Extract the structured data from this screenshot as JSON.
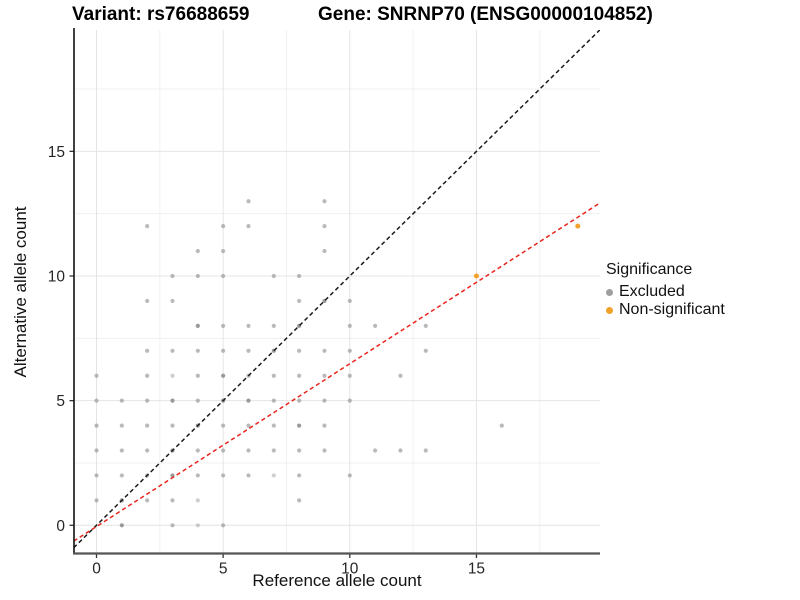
{
  "titles": {
    "variant": "Variant: rs76688659",
    "gene": "Gene: SNRNP70 (ENSG00000104852)"
  },
  "legend": {
    "title": "Significance",
    "items": [
      {
        "label": "Excluded",
        "color": "#9E9E9E"
      },
      {
        "label": "Non-significant",
        "color": "#F2A12B"
      }
    ]
  },
  "colors": {
    "background": "#FFFFFF",
    "grid_major": "#E4E4E4",
    "grid_minor": "#F0F0F0",
    "axis_left": "#111111",
    "axis_bottom": "#555555",
    "tick_text": "#262626",
    "identity_line": "#1A1A1A",
    "fit_line": "#E8251E"
  },
  "chart_data": {
    "type": "scatter",
    "title": "Variant: rs76688659  |  Gene: SNRNP70 (ENSG00000104852)",
    "xlabel": "Reference allele count",
    "ylabel": "Alternative allele count",
    "x_ticks": [
      0,
      5,
      10,
      15
    ],
    "y_ticks": [
      0,
      5,
      10,
      15
    ],
    "xlim": [
      -0.9,
      19.9
    ],
    "ylim": [
      -1.12,
      19.9
    ],
    "grid": {
      "major": [
        0,
        5,
        10,
        15
      ],
      "minor": [
        2.5,
        7.5,
        12.5,
        17.5
      ]
    },
    "legend_position": "right",
    "series": [
      {
        "name": "Excluded",
        "color": "#8C8C8C",
        "radius": 2.1,
        "points": [
          [
            1,
            0,
            "d"
          ],
          [
            3,
            0
          ],
          [
            4,
            0,
            "l"
          ],
          [
            5,
            0
          ],
          [
            0,
            1
          ],
          [
            1,
            1,
            "d"
          ],
          [
            2,
            1
          ],
          [
            3,
            1
          ],
          [
            4,
            1,
            "l"
          ],
          [
            8,
            1
          ],
          [
            0,
            2
          ],
          [
            1,
            2
          ],
          [
            2,
            2
          ],
          [
            3,
            2,
            "d"
          ],
          [
            4,
            2
          ],
          [
            5,
            2
          ],
          [
            6,
            2
          ],
          [
            7,
            2,
            "l"
          ],
          [
            8,
            2
          ],
          [
            10,
            2
          ],
          [
            0,
            3
          ],
          [
            1,
            3
          ],
          [
            2,
            3
          ],
          [
            3,
            3,
            "d"
          ],
          [
            4,
            3
          ],
          [
            5,
            3
          ],
          [
            6,
            3
          ],
          [
            7,
            3
          ],
          [
            8,
            3
          ],
          [
            9,
            3
          ],
          [
            11,
            3
          ],
          [
            12,
            3
          ],
          [
            13,
            3
          ],
          [
            0,
            4
          ],
          [
            1,
            4
          ],
          [
            2,
            4
          ],
          [
            3,
            4
          ],
          [
            4,
            4,
            "d"
          ],
          [
            5,
            4
          ],
          [
            6,
            4
          ],
          [
            7,
            4
          ],
          [
            8,
            4,
            "d"
          ],
          [
            9,
            4
          ],
          [
            16,
            4
          ],
          [
            0,
            5
          ],
          [
            1,
            5
          ],
          [
            2,
            5
          ],
          [
            3,
            5,
            "d"
          ],
          [
            4,
            5
          ],
          [
            5,
            5,
            "d"
          ],
          [
            6,
            5,
            "d"
          ],
          [
            7,
            5
          ],
          [
            8,
            5
          ],
          [
            9,
            5
          ],
          [
            10,
            5
          ],
          [
            0,
            6
          ],
          [
            2,
            6
          ],
          [
            3,
            6,
            "l"
          ],
          [
            4,
            6
          ],
          [
            5,
            6,
            "d"
          ],
          [
            6,
            6
          ],
          [
            7,
            6
          ],
          [
            8,
            6
          ],
          [
            9,
            6
          ],
          [
            10,
            6
          ],
          [
            12,
            6
          ],
          [
            2,
            7
          ],
          [
            3,
            7
          ],
          [
            4,
            7
          ],
          [
            5,
            7
          ],
          [
            6,
            7
          ],
          [
            7,
            7,
            "d"
          ],
          [
            8,
            7
          ],
          [
            9,
            7
          ],
          [
            10,
            7
          ],
          [
            13,
            7
          ],
          [
            4,
            8,
            "d"
          ],
          [
            5,
            8
          ],
          [
            6,
            8
          ],
          [
            7,
            8
          ],
          [
            8,
            8,
            "d"
          ],
          [
            10,
            8
          ],
          [
            11,
            8
          ],
          [
            13,
            8
          ],
          [
            2,
            9
          ],
          [
            3,
            9
          ],
          [
            8,
            9
          ],
          [
            9,
            9,
            "d"
          ],
          [
            10,
            9
          ],
          [
            3,
            10
          ],
          [
            4,
            10
          ],
          [
            5,
            10
          ],
          [
            7,
            10
          ],
          [
            8,
            10
          ],
          [
            4,
            11
          ],
          [
            5,
            11
          ],
          [
            9,
            11
          ],
          [
            2,
            12
          ],
          [
            5,
            12
          ],
          [
            6,
            12
          ],
          [
            9,
            12
          ],
          [
            6,
            13
          ],
          [
            9,
            13
          ]
        ]
      },
      {
        "name": "Non-significant",
        "color": "#F2A12B",
        "radius": 2.5,
        "points": [
          [
            15,
            10
          ],
          [
            19,
            12
          ]
        ]
      }
    ],
    "lines": [
      {
        "name": "identity-line",
        "style": "dashed",
        "color": "#1A1A1A",
        "slope": 1,
        "intercept": 0
      },
      {
        "name": "fit-line",
        "style": "dashed",
        "color": "#E8251E",
        "slope": 0.653,
        "intercept": -0.05
      }
    ]
  }
}
